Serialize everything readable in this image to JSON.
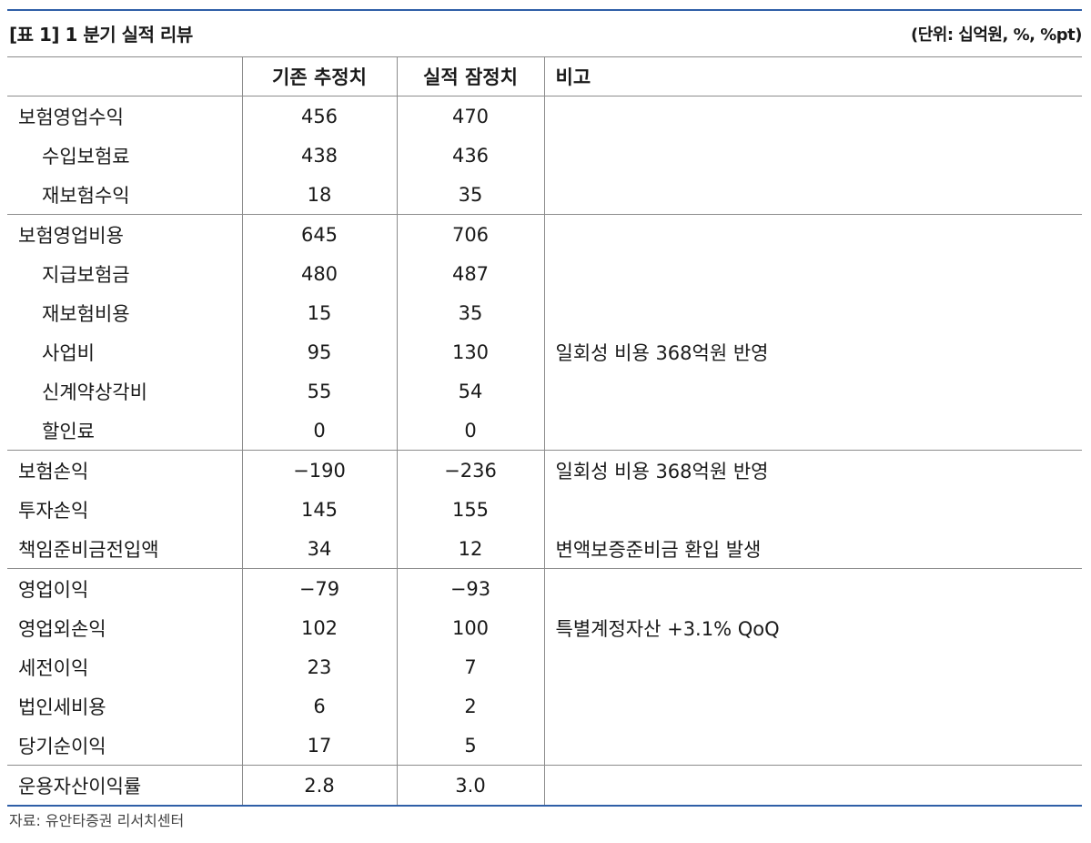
{
  "header": {
    "title": "[표 1] 1 분기 실적 리뷰",
    "unit": "(단위: 십억원, %, %pt)"
  },
  "columns": [
    "",
    "기존 추정치",
    "실적 잠정치",
    "비고"
  ],
  "rows": [
    {
      "label": "보험영업수익",
      "indent": false,
      "estimate": "456",
      "actual": "470",
      "note": "",
      "group_start": true
    },
    {
      "label": "수입보험료",
      "indent": true,
      "estimate": "438",
      "actual": "436",
      "note": "",
      "group_start": false
    },
    {
      "label": "재보험수익",
      "indent": true,
      "estimate": "18",
      "actual": "35",
      "note": "",
      "group_start": false
    },
    {
      "label": "보험영업비용",
      "indent": false,
      "estimate": "645",
      "actual": "706",
      "note": "",
      "group_start": true
    },
    {
      "label": "지급보험금",
      "indent": true,
      "estimate": "480",
      "actual": "487",
      "note": "",
      "group_start": false
    },
    {
      "label": "재보험비용",
      "indent": true,
      "estimate": "15",
      "actual": "35",
      "note": "",
      "group_start": false
    },
    {
      "label": "사업비",
      "indent": true,
      "estimate": "95",
      "actual": "130",
      "note": "일회성 비용 368억원 반영",
      "group_start": false
    },
    {
      "label": "신계약상각비",
      "indent": true,
      "estimate": "55",
      "actual": "54",
      "note": "",
      "group_start": false
    },
    {
      "label": "할인료",
      "indent": true,
      "estimate": "0",
      "actual": "0",
      "note": "",
      "group_start": false
    },
    {
      "label": "보험손익",
      "indent": false,
      "estimate": "−190",
      "actual": "−236",
      "note": "일회성 비용 368억원 반영",
      "group_start": true
    },
    {
      "label": "투자손익",
      "indent": false,
      "estimate": "145",
      "actual": "155",
      "note": "",
      "group_start": false
    },
    {
      "label": "책임준비금전입액",
      "indent": false,
      "estimate": "34",
      "actual": "12",
      "note": "변액보증준비금 환입 발생",
      "group_start": false
    },
    {
      "label": "영업이익",
      "indent": false,
      "estimate": "−79",
      "actual": "−93",
      "note": "",
      "group_start": true
    },
    {
      "label": "영업외손익",
      "indent": false,
      "estimate": "102",
      "actual": "100",
      "note": "특별계정자산 +3.1% QoQ",
      "group_start": false
    },
    {
      "label": "세전이익",
      "indent": false,
      "estimate": "23",
      "actual": "7",
      "note": "",
      "group_start": false
    },
    {
      "label": "법인세비용",
      "indent": false,
      "estimate": "6",
      "actual": "2",
      "note": "",
      "group_start": false
    },
    {
      "label": "당기순이익",
      "indent": false,
      "estimate": "17",
      "actual": "5",
      "note": "",
      "group_start": false
    },
    {
      "label": "운용자산이익률",
      "indent": false,
      "estimate": "2.8",
      "actual": "3.0",
      "note": "",
      "group_start": true
    }
  ],
  "footer": {
    "source": "자료: 유안타증권 리서치센터"
  }
}
